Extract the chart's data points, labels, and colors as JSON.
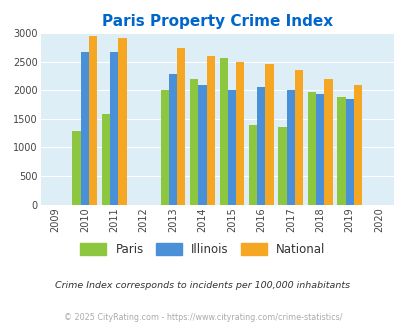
{
  "title": "Paris Property Crime Index",
  "years": [
    2009,
    2010,
    2011,
    2012,
    2013,
    2014,
    2015,
    2016,
    2017,
    2018,
    2019,
    2020
  ],
  "data_years": [
    2010,
    2011,
    2013,
    2014,
    2015,
    2016,
    2017,
    2018,
    2019
  ],
  "paris": [
    1280,
    1590,
    2000,
    2200,
    2560,
    1390,
    1360,
    1975,
    1875
  ],
  "illinois": [
    2670,
    2670,
    2280,
    2090,
    2000,
    2050,
    2010,
    1940,
    1840
  ],
  "national": [
    2940,
    2910,
    2740,
    2600,
    2500,
    2460,
    2360,
    2195,
    2090
  ],
  "paris_color": "#8dc63f",
  "illinois_color": "#4a90d9",
  "national_color": "#f5a623",
  "bg_color": "#ddeef6",
  "title_color": "#0066cc",
  "xlim": [
    2008.5,
    2020.5
  ],
  "ylim": [
    0,
    3000
  ],
  "yticks": [
    0,
    500,
    1000,
    1500,
    2000,
    2500,
    3000
  ],
  "bar_width": 0.28,
  "subtitle": "Crime Index corresponds to incidents per 100,000 inhabitants",
  "footer": "© 2025 CityRating.com - https://www.cityrating.com/crime-statistics/",
  "legend_labels": [
    "Paris",
    "Illinois",
    "National"
  ]
}
